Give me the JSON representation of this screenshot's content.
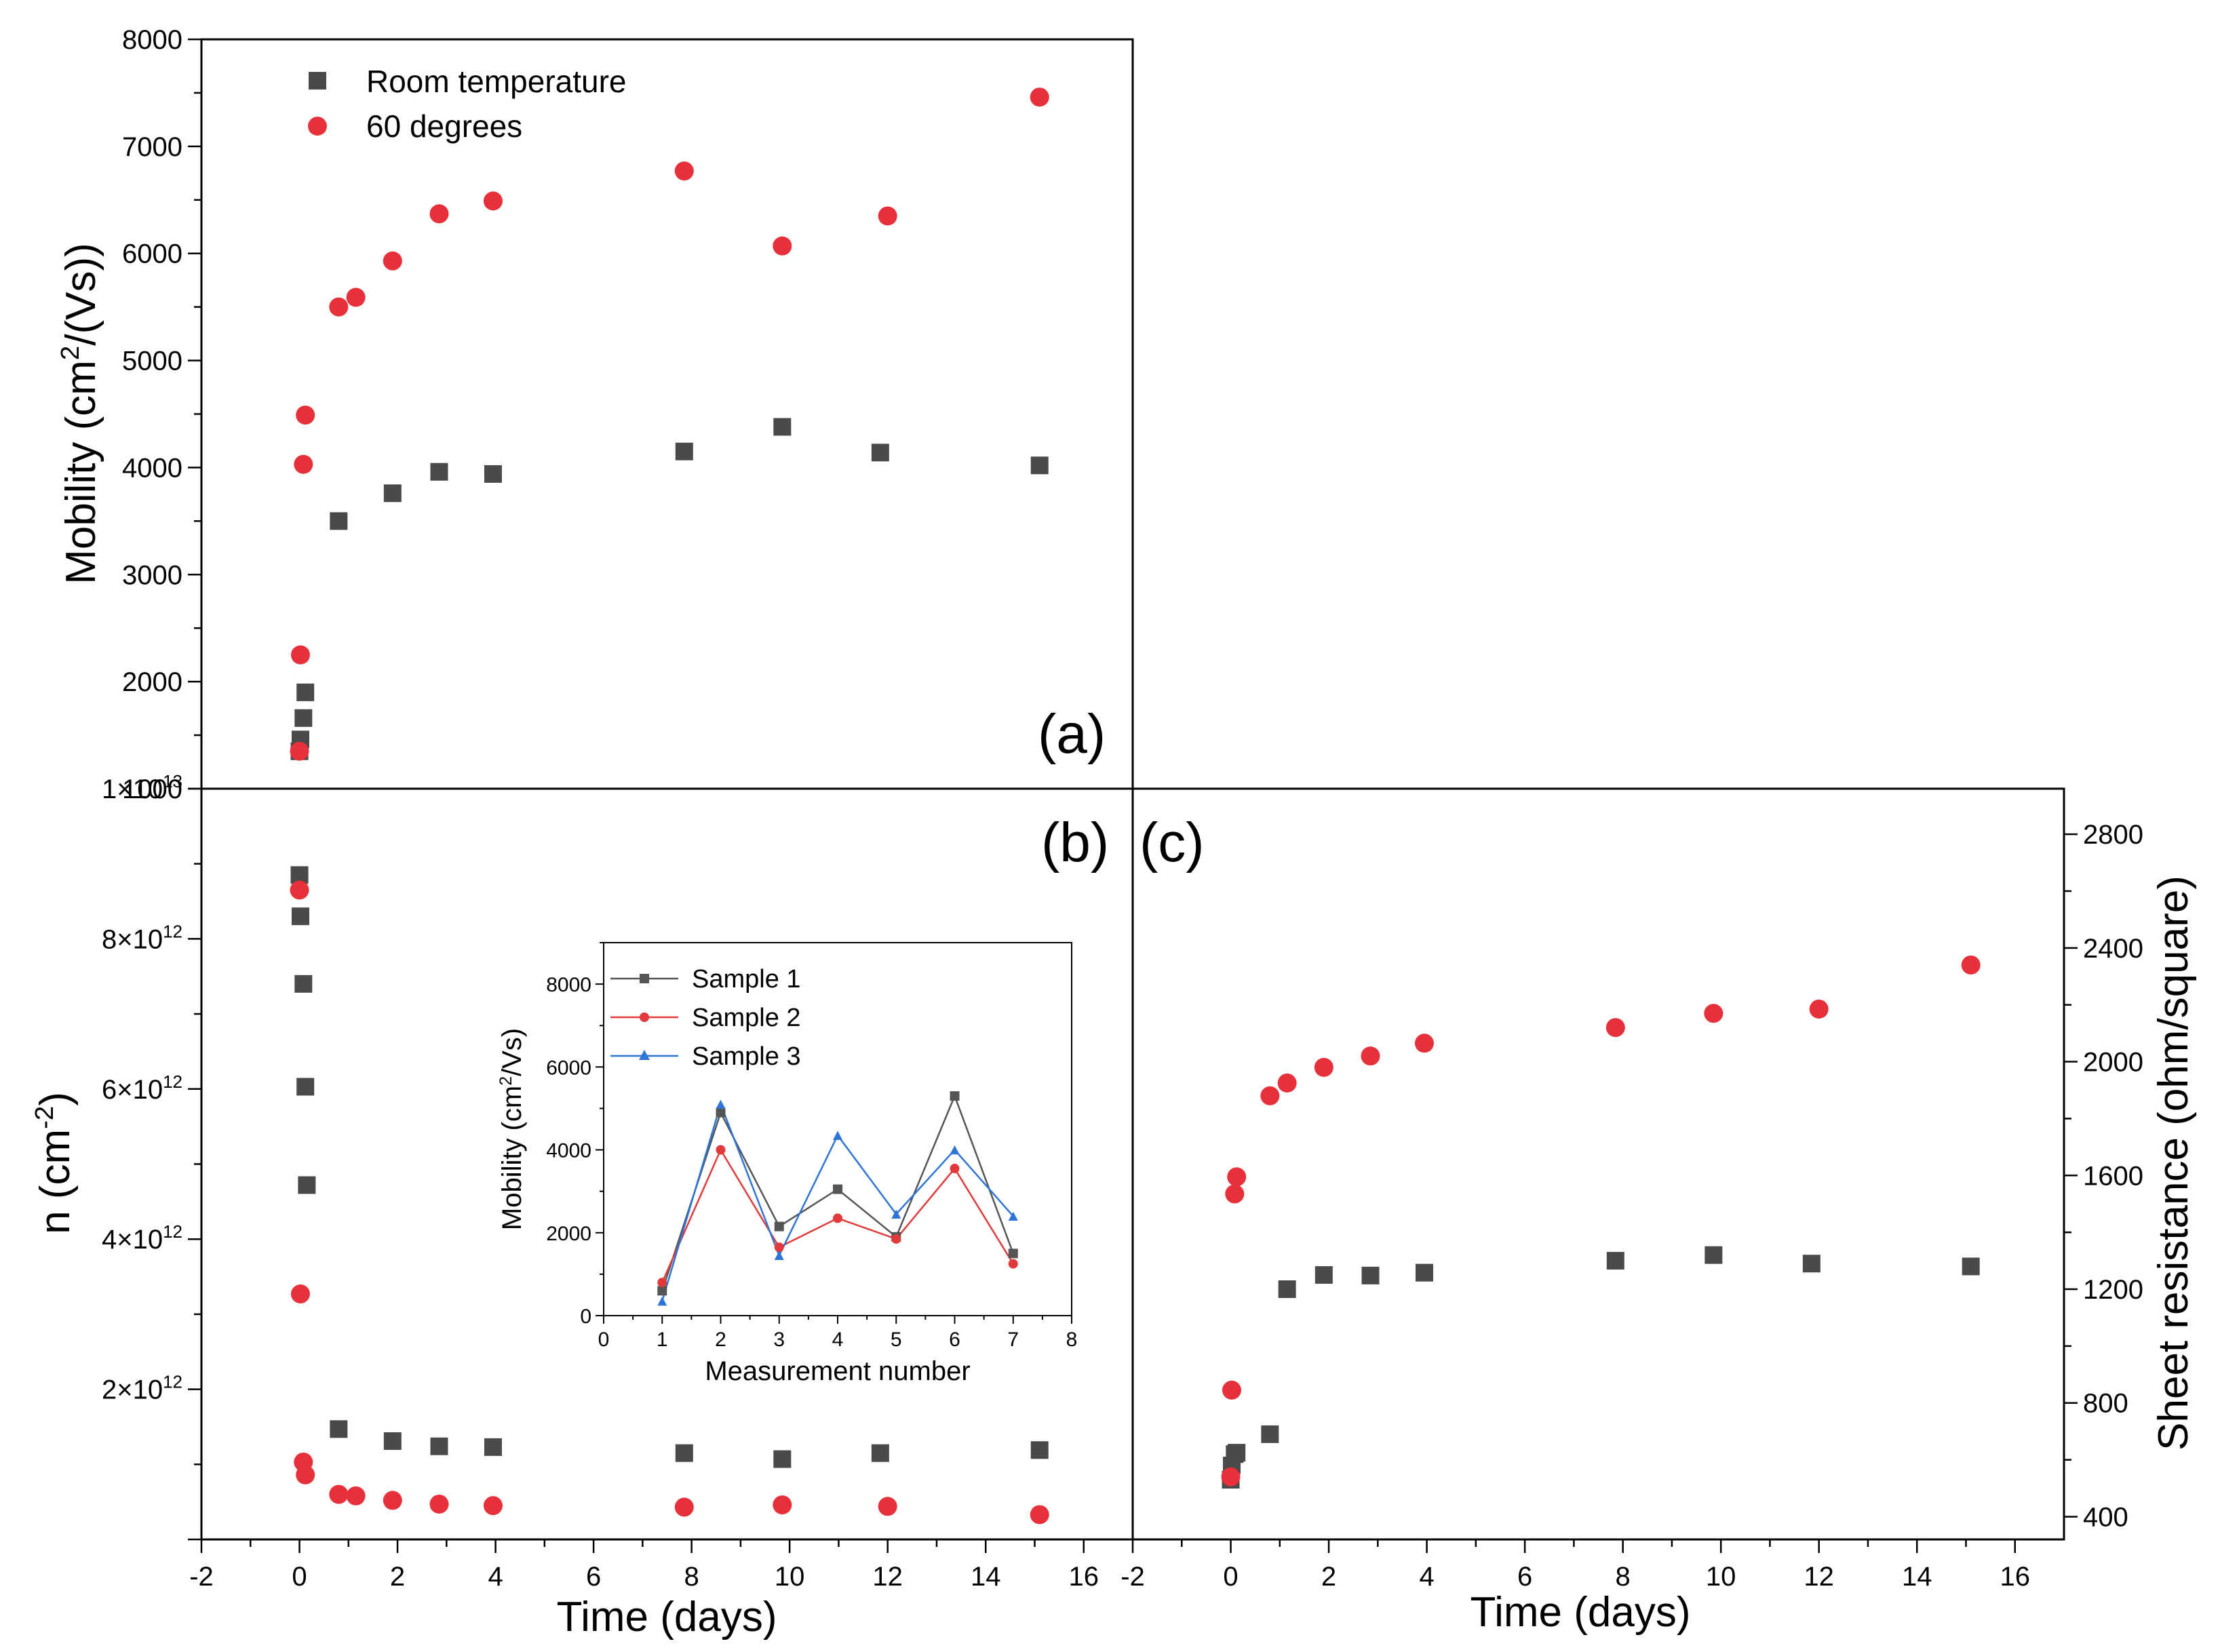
{
  "colors": {
    "room": "#4a4a4a",
    "sixty": "#e8303a",
    "s1": "#555555",
    "s2": "#e23a3a",
    "s3": "#2e74d6"
  },
  "chart_data": [
    {
      "id": "a",
      "type": "scatter",
      "panel_label": "(a)",
      "ylabel": "Mobility (cm2/(Vs))",
      "ylabel_main": "Mobility (cm",
      "ylabel_sup": "2",
      "ylabel_end": "/(Vs))",
      "xlim": [
        -2,
        17
      ],
      "ylim": [
        1000,
        8000
      ],
      "yticks": [
        "1000",
        "2000",
        "3000",
        "4000",
        "5000",
        "6000",
        "7000",
        "8000"
      ],
      "legend": [
        "Room temperature",
        "60 degrees"
      ],
      "legend_position": "top-left",
      "series": [
        {
          "name": "Room temperature",
          "marker": "square",
          "x": [
            0,
            0.02,
            0.08,
            0.12,
            0.8,
            1.9,
            2.85,
            3.95,
            7.85,
            9.85,
            11.85,
            15.1
          ],
          "y": [
            1350,
            1460,
            1660,
            1900,
            3500,
            3760,
            3960,
            3940,
            4150,
            4380,
            4140,
            4020
          ]
        },
        {
          "name": "60 degrees",
          "marker": "circle",
          "x": [
            0,
            0.02,
            0.08,
            0.12,
            0.8,
            1.15,
            1.9,
            2.85,
            3.95,
            7.85,
            9.85,
            12.0,
            15.1
          ],
          "y": [
            1350,
            2250,
            4030,
            4490,
            5500,
            5590,
            5930,
            6370,
            6490,
            6770,
            6070,
            6350,
            7460
          ]
        }
      ]
    },
    {
      "id": "b",
      "type": "scatter",
      "panel_label": "(b)",
      "xlabel": "Time (days)",
      "ylabel": "n (cm-2)",
      "ylabel_main": "n (cm",
      "ylabel_sup": "-2",
      "ylabel_end": ")",
      "xlim": [
        -2,
        17
      ],
      "ylim": [
        0,
        10000000000000.0
      ],
      "xticks": [
        "-2",
        "0",
        "2",
        "4",
        "6",
        "8",
        "10",
        "12",
        "14",
        "16"
      ],
      "ytick_labels": [
        {
          "value": 2000000000000.0,
          "mant": "2",
          "exp": "12"
        },
        {
          "value": 4000000000000.0,
          "mant": "4",
          "exp": "12"
        },
        {
          "value": 6000000000000.0,
          "mant": "6",
          "exp": "12"
        },
        {
          "value": 8000000000000.0,
          "mant": "8",
          "exp": "12"
        },
        {
          "value": 10000000000000.0,
          "mant": "1",
          "exp": "13"
        }
      ],
      "series": [
        {
          "name": "Room temperature",
          "marker": "square",
          "x": [
            0,
            0.02,
            0.08,
            0.12,
            0.15,
            0.8,
            1.9,
            2.85,
            3.95,
            7.85,
            9.85,
            11.85,
            15.1
          ],
          "y": [
            8850000000000.0,
            8300000000000.0,
            7400000000000.0,
            6030000000000.0,
            4720000000000.0,
            1470000000000.0,
            1310000000000.0,
            1240000000000.0,
            1230000000000.0,
            1150000000000.0,
            1070000000000.0,
            1150000000000.0,
            1190000000000.0
          ]
        },
        {
          "name": "60 degrees",
          "marker": "circle",
          "x": [
            0,
            0.02,
            0.08,
            0.12,
            0.8,
            1.15,
            1.9,
            2.85,
            3.95,
            7.85,
            9.85,
            12.0,
            15.1
          ],
          "y": [
            8650000000000.0,
            3270000000000.0,
            1030000000000.0,
            860000000000.0,
            600000000000.0,
            580000000000.0,
            520000000000.0,
            470000000000.0,
            450000000000.0,
            430000000000.0,
            460000000000.0,
            440000000000.0,
            330000000000.0
          ]
        }
      ]
    },
    {
      "id": "c",
      "type": "scatter",
      "panel_label": "(c)",
      "xlabel": "Time (days)",
      "ylabel": "Sheet resistance (ohm/square)",
      "xlim": [
        -2,
        17
      ],
      "ylim": [
        320,
        2960
      ],
      "xticks": [
        "-2",
        "0",
        "2",
        "4",
        "6",
        "8",
        "10",
        "12",
        "14",
        "16"
      ],
      "yticks": [
        "400",
        "800",
        "1200",
        "1600",
        "2000",
        "2400",
        "2800"
      ],
      "series": [
        {
          "name": "Room temperature",
          "marker": "square",
          "x": [
            0,
            0.02,
            0.08,
            0.12,
            0.8,
            1.15,
            1.9,
            2.85,
            3.95,
            7.85,
            9.85,
            11.85,
            15.1
          ],
          "y": [
            530,
            580,
            620,
            625,
            690,
            1200,
            1250,
            1248,
            1258,
            1300,
            1320,
            1290,
            1280
          ]
        },
        {
          "name": "60 degrees",
          "marker": "circle",
          "x": [
            0,
            0.02,
            0.08,
            0.12,
            0.8,
            1.15,
            1.9,
            2.85,
            3.95,
            7.85,
            9.85,
            12.0,
            15.1
          ],
          "y": [
            540,
            845,
            1535,
            1595,
            1880,
            1925,
            1980,
            2020,
            2065,
            2120,
            2170,
            2185,
            2340
          ]
        }
      ]
    },
    {
      "id": "inset",
      "type": "line",
      "xlabel": "Measurement number",
      "ylabel": "Mobility (cm2/Vs)",
      "ylabel_main": "Mobility (cm",
      "ylabel_sup": "2",
      "ylabel_end": "/Vs)",
      "xlim": [
        0,
        8
      ],
      "ylim": [
        0,
        9000
      ],
      "xticks": [
        "0",
        "1",
        "2",
        "3",
        "4",
        "5",
        "6",
        "7",
        "8"
      ],
      "yticks": [
        "0",
        "2000",
        "4000",
        "6000",
        "8000"
      ],
      "legend": [
        "Sample 1",
        "Sample 2",
        "Sample 3"
      ],
      "legend_position": "top-left",
      "categories": [
        1,
        2,
        3,
        4,
        5,
        6,
        7
      ],
      "series": [
        {
          "name": "Sample 1",
          "marker": "square",
          "values": [
            600,
            4900,
            2150,
            3050,
            1900,
            5300,
            1500
          ]
        },
        {
          "name": "Sample 2",
          "marker": "circle",
          "values": [
            800,
            4000,
            1650,
            2350,
            1850,
            3550,
            1250
          ]
        },
        {
          "name": "Sample 3",
          "marker": "triangle",
          "values": [
            350,
            5100,
            1450,
            4350,
            2450,
            4000,
            2400
          ]
        }
      ]
    }
  ]
}
